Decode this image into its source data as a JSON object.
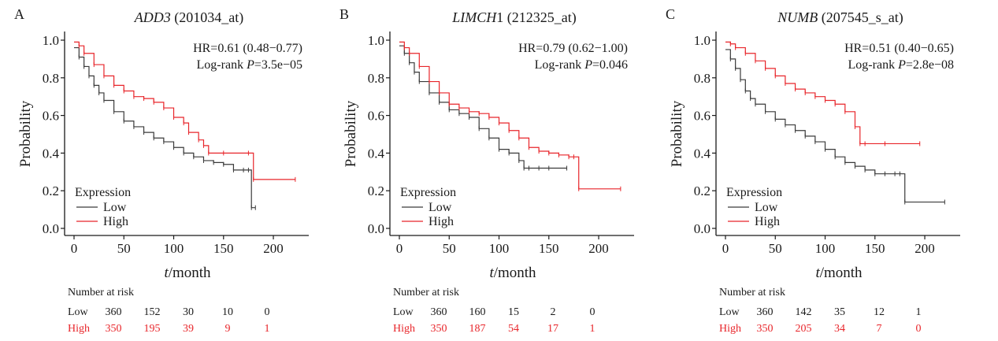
{
  "chart_data": [
    {
      "type": "line",
      "panel_letter": "A",
      "title_gene": "ADD3",
      "title_probe": " (201034_at)",
      "hr_text": "HR=0.61 (0.48−0.77)",
      "p_prefix": "Log-rank ",
      "p_symbol": "P",
      "p_value": "=3.5e−05",
      "ylabel": "Probability",
      "xlabel_var": "t",
      "xlabel_unit": "/month",
      "xlim": [
        0,
        230
      ],
      "ylim": [
        0,
        1.0
      ],
      "xticks": [
        "0",
        "50",
        "100",
        "150",
        "200"
      ],
      "yticks": [
        "0.0",
        "0.2",
        "0.4",
        "0.6",
        "0.8",
        "1.0"
      ],
      "legend_title": "Expression",
      "series": [
        {
          "name": "Low",
          "color": "#3a3a3a",
          "x": [
            0,
            5,
            10,
            15,
            20,
            25,
            30,
            40,
            50,
            60,
            70,
            80,
            90,
            100,
            110,
            120,
            130,
            140,
            150,
            160,
            170,
            175,
            178,
            182
          ],
          "y": [
            0.96,
            0.91,
            0.86,
            0.81,
            0.76,
            0.72,
            0.68,
            0.62,
            0.57,
            0.54,
            0.51,
            0.48,
            0.46,
            0.43,
            0.4,
            0.38,
            0.36,
            0.35,
            0.34,
            0.31,
            0.31,
            0.31,
            0.11,
            0.11
          ]
        },
        {
          "name": "High",
          "color": "#e8252a",
          "x": [
            0,
            5,
            10,
            20,
            30,
            40,
            50,
            60,
            70,
            80,
            90,
            100,
            110,
            115,
            125,
            130,
            135,
            150,
            175,
            180,
            222
          ],
          "y": [
            0.99,
            0.97,
            0.93,
            0.87,
            0.81,
            0.76,
            0.73,
            0.7,
            0.69,
            0.67,
            0.64,
            0.59,
            0.56,
            0.51,
            0.47,
            0.44,
            0.4,
            0.4,
            0.4,
            0.26,
            0.26
          ]
        }
      ],
      "risk": {
        "title": "Number at risk",
        "low_label": "Low",
        "high_label": "High",
        "low": [
          "360",
          "152",
          "30",
          "10",
          "0"
        ],
        "high": [
          "350",
          "195",
          "39",
          "9",
          "1"
        ]
      }
    },
    {
      "type": "line",
      "panel_letter": "B",
      "title_gene": "LIMCH",
      "title_probe": "1 (212325_at)",
      "hr_text": "HR=0.79 (0.62−1.00)",
      "p_prefix": "Log-rank ",
      "p_symbol": "P",
      "p_value": "=0.046",
      "ylabel": "Probability",
      "xlabel_var": "t",
      "xlabel_unit": "/month",
      "xlim": [
        0,
        230
      ],
      "ylim": [
        0,
        1.0
      ],
      "xticks": [
        "0",
        "50",
        "100",
        "150",
        "200"
      ],
      "yticks": [
        "0.0",
        "0.2",
        "0.4",
        "0.6",
        "0.8",
        "1.0"
      ],
      "legend_title": "Expression",
      "series": [
        {
          "name": "Low",
          "color": "#3a3a3a",
          "x": [
            0,
            5,
            10,
            15,
            20,
            30,
            40,
            50,
            60,
            70,
            80,
            90,
            100,
            110,
            120,
            125,
            130,
            140,
            150,
            168
          ],
          "y": [
            0.97,
            0.93,
            0.88,
            0.83,
            0.78,
            0.72,
            0.67,
            0.63,
            0.61,
            0.59,
            0.53,
            0.48,
            0.42,
            0.4,
            0.36,
            0.32,
            0.32,
            0.32,
            0.32,
            0.32
          ]
        },
        {
          "name": "High",
          "color": "#e8252a",
          "x": [
            0,
            5,
            10,
            20,
            30,
            40,
            50,
            60,
            70,
            80,
            90,
            100,
            110,
            120,
            130,
            140,
            150,
            160,
            170,
            175,
            180,
            222
          ],
          "y": [
            0.99,
            0.96,
            0.93,
            0.86,
            0.78,
            0.72,
            0.66,
            0.64,
            0.62,
            0.61,
            0.59,
            0.56,
            0.52,
            0.48,
            0.43,
            0.41,
            0.4,
            0.39,
            0.38,
            0.38,
            0.21,
            0.21
          ]
        }
      ],
      "risk": {
        "title": "Number at risk",
        "low_label": "Low",
        "high_label": "High",
        "low": [
          "360",
          "160",
          "15",
          "2",
          "0"
        ],
        "high": [
          "350",
          "187",
          "54",
          "17",
          "1"
        ]
      }
    },
    {
      "type": "line",
      "panel_letter": "C",
      "title_gene": "NUMB",
      "title_probe": " (207545_s_at)",
      "hr_text": "HR=0.51 (0.40−0.65)",
      "p_prefix": "Log-rank ",
      "p_symbol": "P",
      "p_value": "=2.8e−08",
      "ylabel": "Probability",
      "xlabel_var": "t",
      "xlabel_unit": "/month",
      "xlim": [
        0,
        230
      ],
      "ylim": [
        0,
        1.0
      ],
      "xticks": [
        "0",
        "50",
        "100",
        "150",
        "200"
      ],
      "yticks": [
        "0.0",
        "0.2",
        "0.4",
        "0.6",
        "0.8",
        "1.0"
      ],
      "legend_title": "Expression",
      "series": [
        {
          "name": "Low",
          "color": "#3a3a3a",
          "x": [
            0,
            5,
            10,
            15,
            20,
            25,
            30,
            40,
            50,
            60,
            70,
            80,
            90,
            100,
            110,
            120,
            130,
            140,
            150,
            160,
            170,
            175,
            180,
            220
          ],
          "y": [
            0.95,
            0.9,
            0.85,
            0.79,
            0.73,
            0.69,
            0.66,
            0.62,
            0.58,
            0.55,
            0.52,
            0.49,
            0.46,
            0.42,
            0.38,
            0.35,
            0.33,
            0.31,
            0.29,
            0.29,
            0.29,
            0.29,
            0.14,
            0.14
          ]
        },
        {
          "name": "High",
          "color": "#e8252a",
          "x": [
            0,
            5,
            10,
            20,
            30,
            40,
            50,
            60,
            70,
            80,
            90,
            100,
            110,
            120,
            130,
            135,
            140,
            160,
            195
          ],
          "y": [
            0.99,
            0.98,
            0.96,
            0.93,
            0.89,
            0.85,
            0.81,
            0.77,
            0.74,
            0.72,
            0.7,
            0.68,
            0.66,
            0.62,
            0.54,
            0.45,
            0.45,
            0.45,
            0.45
          ]
        }
      ],
      "risk": {
        "title": "Number at risk",
        "low_label": "Low",
        "high_label": "High",
        "low": [
          "360",
          "142",
          "35",
          "12",
          "1"
        ],
        "high": [
          "350",
          "205",
          "34",
          "7",
          "0"
        ]
      }
    }
  ]
}
